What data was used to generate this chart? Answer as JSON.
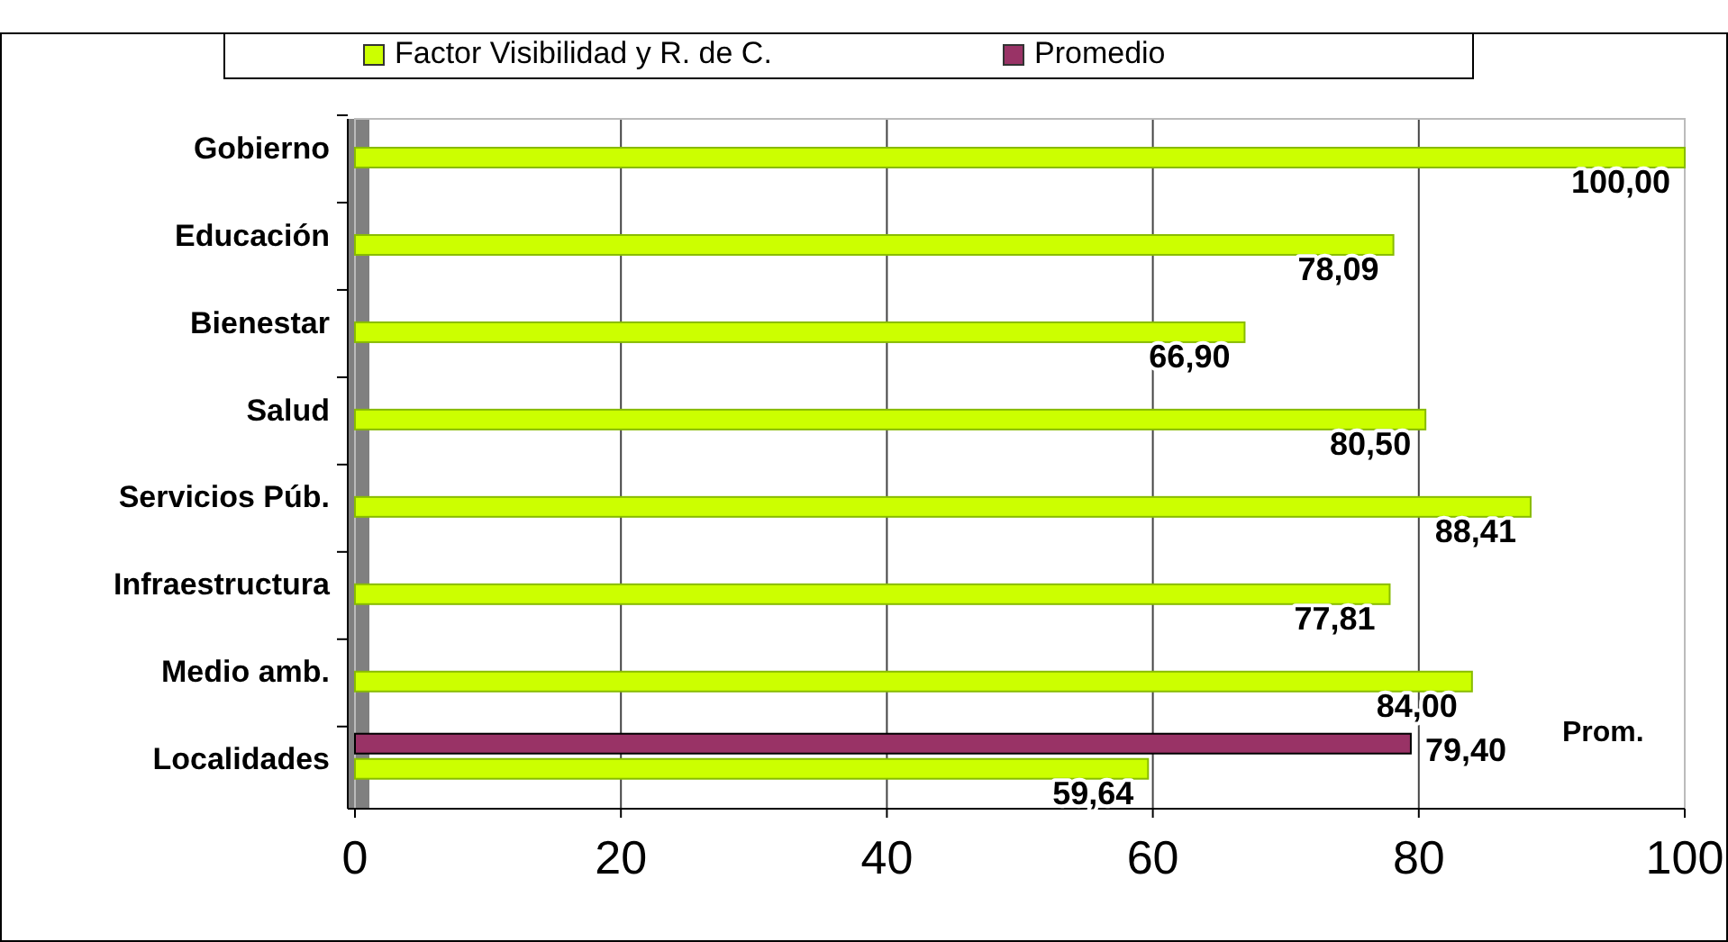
{
  "chart_data": {
    "type": "bar",
    "orientation": "horizontal",
    "categories": [
      "Gobierno",
      "Educación",
      "Bienestar",
      "Salud",
      "Servicios Púb.",
      "Infraestructura",
      "Medio amb.",
      "Localidades"
    ],
    "series": [
      {
        "name": "Factor Visibilidad y R. de C.",
        "color": "#ccff00",
        "values": [
          100.0,
          78.09,
          66.9,
          80.5,
          88.41,
          77.81,
          84.0,
          59.64
        ],
        "value_labels": [
          "100,00",
          "78,09",
          "66,90",
          "80,50",
          "88,41",
          "77,81",
          "84,00",
          "59,64"
        ]
      },
      {
        "name": "Promedio",
        "color": "#993366",
        "values": [
          null,
          null,
          null,
          null,
          null,
          null,
          null,
          79.4
        ],
        "value_labels": [
          null,
          null,
          null,
          null,
          null,
          null,
          null,
          "79,40"
        ]
      }
    ],
    "xlim": [
      0,
      100
    ],
    "xticks": [
      0,
      20,
      40,
      60,
      80,
      100
    ],
    "grid": "x",
    "legend": "top",
    "annotations": [
      "Prom."
    ]
  }
}
